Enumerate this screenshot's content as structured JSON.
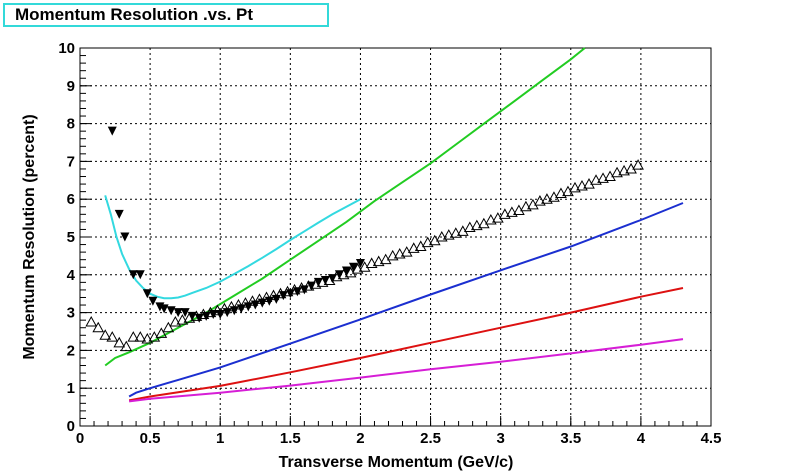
{
  "chart_data": {
    "type": "line",
    "title": "Momentum Resolution .vs. Pt",
    "xlabel": "Transverse Momentum (GeV/c)",
    "ylabel": "Momentum Resolution (percent)",
    "xlim": [
      0,
      4.5
    ],
    "ylim": [
      0,
      10
    ],
    "grid": true,
    "xticks": [
      "0",
      "0.5",
      "1",
      "1.5",
      "2",
      "2.5",
      "3",
      "3.5",
      "4",
      "4.5"
    ],
    "yticks": [
      "0",
      "1",
      "2",
      "3",
      "4",
      "5",
      "6",
      "7",
      "8",
      "9",
      "10"
    ],
    "colors": {
      "cyan": "#33d9e0",
      "green": "#22cc22",
      "blue": "#1b2fd0",
      "red": "#dd1111",
      "magenta": "#d61ed6"
    },
    "series": [
      {
        "color": "cyan",
        "kind": "line",
        "x": [
          0.18,
          0.22,
          0.26,
          0.3,
          0.35,
          0.4,
          0.45,
          0.5,
          0.55,
          0.6,
          0.65,
          0.7,
          0.75,
          0.8,
          0.9,
          1.0,
          1.1,
          1.2,
          1.3,
          1.4,
          1.5,
          1.6,
          1.7,
          1.8,
          1.9,
          2.0
        ],
        "y": [
          6.1,
          5.6,
          5.0,
          4.55,
          4.15,
          3.85,
          3.65,
          3.5,
          3.42,
          3.38,
          3.38,
          3.4,
          3.45,
          3.52,
          3.65,
          3.82,
          4.02,
          4.23,
          4.45,
          4.68,
          4.92,
          5.15,
          5.38,
          5.6,
          5.8,
          6.0
        ]
      },
      {
        "color": "green",
        "kind": "line",
        "x": [
          0.18,
          0.25,
          0.35,
          0.5,
          0.7,
          0.9,
          1.1,
          1.3,
          1.5,
          1.7,
          1.9,
          2.1,
          2.3,
          2.5,
          2.7,
          2.9,
          3.1,
          3.3,
          3.5,
          3.6
        ],
        "y": [
          1.6,
          1.8,
          1.95,
          2.2,
          2.6,
          3.0,
          3.45,
          3.9,
          4.4,
          4.9,
          5.4,
          5.95,
          6.45,
          6.95,
          7.5,
          8.05,
          8.6,
          9.15,
          9.7,
          10.0
        ]
      },
      {
        "color": "blue",
        "kind": "line",
        "x": [
          0.35,
          0.4,
          0.5,
          0.7,
          1.0,
          1.5,
          2.0,
          2.5,
          3.0,
          3.5,
          4.0,
          4.3
        ],
        "y": [
          0.78,
          0.88,
          1.0,
          1.22,
          1.55,
          2.18,
          2.82,
          3.48,
          4.12,
          4.75,
          5.45,
          5.9
        ]
      },
      {
        "color": "red",
        "kind": "line",
        "x": [
          0.35,
          0.5,
          1.0,
          1.5,
          2.0,
          2.5,
          3.0,
          3.5,
          4.0,
          4.3
        ],
        "y": [
          0.68,
          0.78,
          1.06,
          1.42,
          1.8,
          2.2,
          2.6,
          3.0,
          3.42,
          3.65
        ]
      },
      {
        "color": "magenta",
        "kind": "line",
        "x": [
          0.35,
          0.5,
          1.0,
          1.5,
          2.0,
          2.5,
          3.0,
          3.5,
          4.0,
          4.3
        ],
        "y": [
          0.65,
          0.72,
          0.88,
          1.07,
          1.28,
          1.5,
          1.7,
          1.92,
          2.15,
          2.3
        ]
      },
      {
        "color": "black",
        "kind": "filled-triangle-down",
        "x": [
          0.23,
          0.28,
          0.32,
          0.38,
          0.43,
          0.48,
          0.52,
          0.57,
          0.6,
          0.65,
          0.7,
          0.75,
          0.8,
          0.85,
          0.9,
          0.95,
          1.0,
          1.05,
          1.1,
          1.15,
          1.2,
          1.25,
          1.3,
          1.35,
          1.4,
          1.45,
          1.5,
          1.55,
          1.6,
          1.65,
          1.7,
          1.75,
          1.8,
          1.85,
          1.9,
          1.95,
          2.0
        ],
        "y": [
          7.8,
          5.6,
          5.0,
          4.0,
          4.0,
          3.5,
          3.3,
          3.15,
          3.1,
          3.05,
          3.0,
          3.0,
          2.9,
          2.85,
          2.9,
          2.95,
          2.95,
          3.0,
          3.05,
          3.1,
          3.15,
          3.2,
          3.25,
          3.3,
          3.35,
          3.45,
          3.5,
          3.55,
          3.6,
          3.7,
          3.8,
          3.85,
          3.9,
          4.0,
          4.1,
          4.2,
          4.3
        ]
      },
      {
        "color": "black",
        "kind": "open-triangle-up",
        "x": [
          0.08,
          0.13,
          0.18,
          0.23,
          0.28,
          0.33,
          0.38,
          0.43,
          0.48,
          0.53,
          0.58,
          0.63,
          0.68,
          0.73,
          0.78,
          0.83,
          0.88,
          0.93,
          0.98,
          1.03,
          1.08,
          1.13,
          1.18,
          1.23,
          1.28,
          1.33,
          1.38,
          1.43,
          1.48,
          1.53,
          1.58,
          1.63,
          1.68,
          1.73,
          1.78,
          1.83,
          1.88,
          1.93,
          1.98,
          2.03,
          2.08,
          2.13,
          2.18,
          2.23,
          2.28,
          2.33,
          2.38,
          2.43,
          2.48,
          2.53,
          2.58,
          2.63,
          2.68,
          2.73,
          2.78,
          2.83,
          2.88,
          2.93,
          2.98,
          3.03,
          3.08,
          3.13,
          3.18,
          3.23,
          3.28,
          3.33,
          3.38,
          3.43,
          3.48,
          3.53,
          3.58,
          3.63,
          3.68,
          3.73,
          3.78,
          3.83,
          3.88,
          3.93,
          3.98
        ],
        "y": [
          2.75,
          2.6,
          2.4,
          2.35,
          2.2,
          2.1,
          2.35,
          2.35,
          2.3,
          2.35,
          2.45,
          2.6,
          2.75,
          2.8,
          2.85,
          2.9,
          2.95,
          3.0,
          3.05,
          3.1,
          3.15,
          3.2,
          3.25,
          3.3,
          3.35,
          3.4,
          3.45,
          3.5,
          3.55,
          3.6,
          3.65,
          3.7,
          3.75,
          3.8,
          3.85,
          3.95,
          4.0,
          4.05,
          4.15,
          4.2,
          4.3,
          4.35,
          4.4,
          4.5,
          4.55,
          4.6,
          4.7,
          4.75,
          4.85,
          4.9,
          5.0,
          5.05,
          5.1,
          5.15,
          5.25,
          5.3,
          5.35,
          5.45,
          5.5,
          5.6,
          5.65,
          5.7,
          5.8,
          5.85,
          5.95,
          6.0,
          6.05,
          6.15,
          6.2,
          6.3,
          6.35,
          6.4,
          6.5,
          6.55,
          6.6,
          6.7,
          6.75,
          6.8,
          6.9
        ]
      }
    ]
  }
}
